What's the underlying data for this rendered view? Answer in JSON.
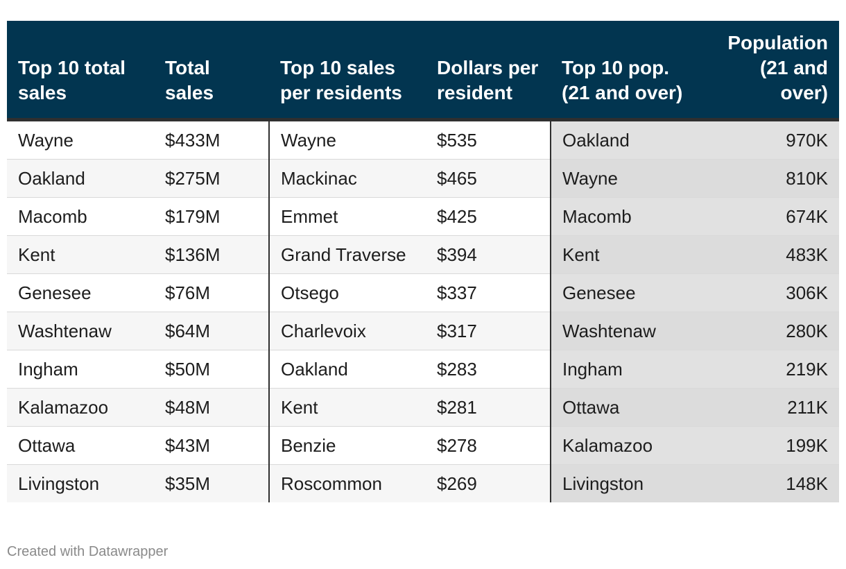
{
  "chart_data": {
    "type": "table",
    "columns": [
      "Top 10 total sales",
      "Total sales",
      "Top 10 sales per residents",
      "Dollars per resident",
      "Top 10 pop. (21 and over)",
      "Population (21 and over)"
    ],
    "rows": [
      [
        "Wayne",
        "$433M",
        "Wayne",
        "$535",
        "Oakland",
        "970K"
      ],
      [
        "Oakland",
        "$275M",
        "Mackinac",
        "$465",
        "Wayne",
        "810K"
      ],
      [
        "Macomb",
        "$179M",
        "Emmet",
        "$425",
        "Macomb",
        "674K"
      ],
      [
        "Kent",
        "$136M",
        "Grand Traverse",
        "$394",
        "Kent",
        "483K"
      ],
      [
        "Genesee",
        "$76M",
        "Otsego",
        "$337",
        "Genesee",
        "306K"
      ],
      [
        "Washtenaw",
        "$64M",
        "Charlevoix",
        "$317",
        "Washtenaw",
        "280K"
      ],
      [
        "Ingham",
        "$50M",
        "Oakland",
        "$283",
        "Ingham",
        "219K"
      ],
      [
        "Kalamazoo",
        "$48M",
        "Kent",
        "$281",
        "Ottawa",
        "211K"
      ],
      [
        "Ottawa",
        "$43M",
        "Benzie",
        "$278",
        "Kalamazoo",
        "199K"
      ],
      [
        "Livingston",
        "$35M",
        "Roscommon",
        "$269",
        "Livingston",
        "148K"
      ]
    ]
  },
  "footer": {
    "credit": "Created with Datawrapper"
  },
  "colors": {
    "header_bg": "#023550",
    "header_text": "#ffffff",
    "pop_bg": "#e1e1e1"
  }
}
